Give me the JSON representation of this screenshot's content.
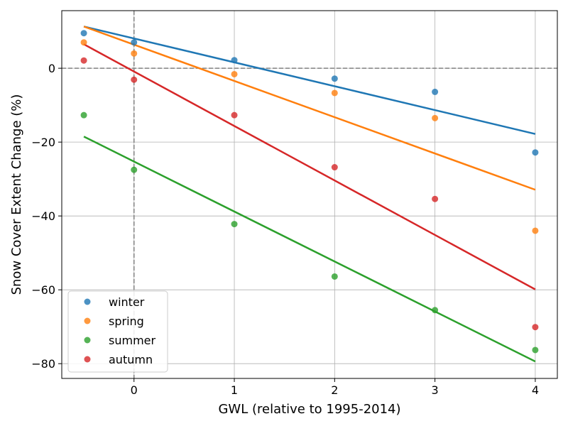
{
  "chart_data": {
    "type": "scatter",
    "xlabel": "GWL (relative to 1995-2014)",
    "ylabel": "Snow Cover Extent Change (%)",
    "xlim": [
      -0.72,
      4.22
    ],
    "ylim": [
      -84.0,
      15.6
    ],
    "xticks": [
      0,
      1,
      2,
      3,
      4
    ],
    "xtick_labels": [
      "0",
      "1",
      "2",
      "3",
      "4"
    ],
    "yticks": [
      0,
      -20,
      -40,
      -60,
      -80
    ],
    "ytick_labels": [
      "0",
      "−20",
      "−40",
      "−60",
      "−80"
    ],
    "grid": true,
    "reference_lines": {
      "x": 0,
      "y": 0,
      "style": "dashed"
    },
    "legend_position": "lower-left",
    "x": [
      -0.5,
      0,
      1,
      2,
      3,
      4
    ],
    "series": [
      {
        "name": "winter",
        "color": "#1f77b4",
        "values": [
          9.5,
          7.0,
          2.2,
          -2.8,
          -6.4,
          -22.8
        ],
        "trend": [
          [
            -0.5,
            11.3
          ],
          [
            4,
            -17.8
          ]
        ]
      },
      {
        "name": "spring",
        "color": "#ff7f0e",
        "values": [
          7.0,
          4.0,
          -1.6,
          -6.7,
          -13.5,
          -44.0
        ],
        "trend": [
          [
            -0.5,
            11.3
          ],
          [
            4,
            -32.9
          ]
        ]
      },
      {
        "name": "summer",
        "color": "#2ca02c",
        "values": [
          -12.7,
          -27.5,
          -42.2,
          -56.4,
          -65.5,
          -76.3
        ],
        "trend": [
          [
            -0.5,
            -18.5
          ],
          [
            4,
            -79.4
          ]
        ]
      },
      {
        "name": "autumn",
        "color": "#d62728",
        "values": [
          2.1,
          -3.1,
          -12.7,
          -26.8,
          -35.4,
          -70.1
        ],
        "trend": [
          [
            -0.5,
            6.5
          ],
          [
            4,
            -59.9
          ]
        ]
      }
    ]
  }
}
